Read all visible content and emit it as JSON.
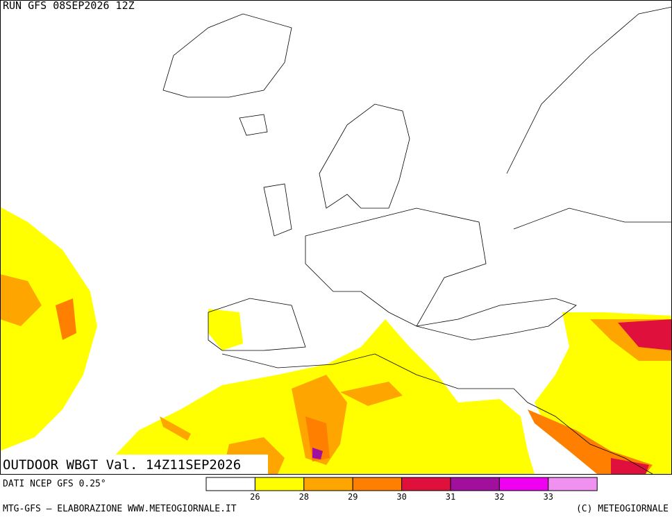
{
  "header": {
    "run": "RUN GFS 08SEP2026 12Z",
    "title": "OUTDOOR WBGT Val. 14Z11SEP2026"
  },
  "footer": {
    "source": "DATI NCEP GFS 0.25°",
    "credit": "MTG-GFS — ELABORAZIONE WWW.METEOGIORNALE.IT",
    "copyright": "(C) METEOGIORNALE"
  },
  "legend": {
    "colors": [
      "#ffffff",
      "#ffff00",
      "#ffa500",
      "#ff7f00",
      "#e0103c",
      "#a0109c",
      "#f000f0",
      "#f090f0"
    ],
    "thresholds": [
      26,
      28,
      29,
      30,
      31,
      32,
      33
    ]
  }
}
